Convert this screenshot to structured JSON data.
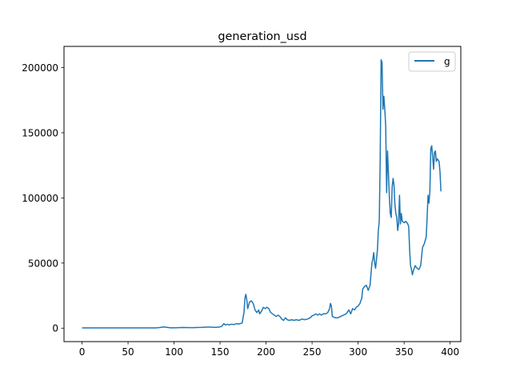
{
  "chart_data": {
    "type": "line",
    "title": "generation_usd",
    "xlabel": "",
    "ylabel": "",
    "xlim": [
      -19.6,
      411.6
    ],
    "ylim": [
      -10300,
      216300
    ],
    "xticks": [
      0,
      50,
      100,
      150,
      200,
      250,
      300,
      350,
      400
    ],
    "yticks": [
      0,
      50000,
      100000,
      150000,
      200000
    ],
    "xtick_labels": [
      "0",
      "50",
      "100",
      "150",
      "200",
      "250",
      "300",
      "350",
      "400"
    ],
    "ytick_labels": [
      "0",
      "50000",
      "100000",
      "150000",
      "200000"
    ],
    "grid": false,
    "legend": {
      "position": "top-right"
    },
    "series": [
      {
        "name": "g",
        "color": "#1f77b4",
        "points": [
          [
            0,
            200
          ],
          [
            20,
            200
          ],
          [
            40,
            200
          ],
          [
            60,
            200
          ],
          [
            80,
            200
          ],
          [
            85,
            500
          ],
          [
            88,
            1000
          ],
          [
            92,
            700
          ],
          [
            96,
            300
          ],
          [
            100,
            300
          ],
          [
            110,
            500
          ],
          [
            120,
            400
          ],
          [
            125,
            500
          ],
          [
            130,
            600
          ],
          [
            135,
            800
          ],
          [
            140,
            800
          ],
          [
            145,
            600
          ],
          [
            150,
            1000
          ],
          [
            152,
            1500
          ],
          [
            154,
            3500
          ],
          [
            156,
            2500
          ],
          [
            158,
            3000
          ],
          [
            160,
            2500
          ],
          [
            162,
            3000
          ],
          [
            165,
            2800
          ],
          [
            168,
            3500
          ],
          [
            170,
            3200
          ],
          [
            172,
            3500
          ],
          [
            174,
            4000
          ],
          [
            176,
            12000
          ],
          [
            177,
            23000
          ],
          [
            178,
            26000
          ],
          [
            179,
            22000
          ],
          [
            180,
            15000
          ],
          [
            182,
            20000
          ],
          [
            184,
            21000
          ],
          [
            186,
            19000
          ],
          [
            188,
            14000
          ],
          [
            190,
            12000
          ],
          [
            192,
            14000
          ],
          [
            193,
            11000
          ],
          [
            195,
            13000
          ],
          [
            197,
            16000
          ],
          [
            199,
            15000
          ],
          [
            201,
            16000
          ],
          [
            203,
            15000
          ],
          [
            205,
            12000
          ],
          [
            207,
            11000
          ],
          [
            209,
            10000
          ],
          [
            211,
            9000
          ],
          [
            213,
            10000
          ],
          [
            215,
            9000
          ],
          [
            217,
            7000
          ],
          [
            219,
            6000
          ],
          [
            221,
            8000
          ],
          [
            223,
            6500
          ],
          [
            225,
            6000
          ],
          [
            228,
            6500
          ],
          [
            230,
            6000
          ],
          [
            233,
            6500
          ],
          [
            236,
            6000
          ],
          [
            239,
            7000
          ],
          [
            242,
            6500
          ],
          [
            245,
            7000
          ],
          [
            248,
            8000
          ],
          [
            250,
            9500
          ],
          [
            252,
            10000
          ],
          [
            254,
            11000
          ],
          [
            256,
            10000
          ],
          [
            258,
            11000
          ],
          [
            260,
            10000
          ],
          [
            262,
            11000
          ],
          [
            265,
            11000
          ],
          [
            267,
            12000
          ],
          [
            269,
            15000
          ],
          [
            270,
            19000
          ],
          [
            271,
            17000
          ],
          [
            272,
            9000
          ],
          [
            275,
            8000
          ],
          [
            278,
            8000
          ],
          [
            281,
            9000
          ],
          [
            284,
            10000
          ],
          [
            287,
            11000
          ],
          [
            288,
            12000
          ],
          [
            290,
            14000
          ],
          [
            292,
            11000
          ],
          [
            294,
            15000
          ],
          [
            296,
            14000
          ],
          [
            298,
            16000
          ],
          [
            300,
            17000
          ],
          [
            302,
            19000
          ],
          [
            304,
            23000
          ],
          [
            305,
            30000
          ],
          [
            307,
            32000
          ],
          [
            309,
            33000
          ],
          [
            311,
            29000
          ],
          [
            313,
            33000
          ],
          [
            315,
            50000
          ],
          [
            316,
            53000
          ],
          [
            317,
            58000
          ],
          [
            318,
            50000
          ],
          [
            319,
            46000
          ],
          [
            320,
            53000
          ],
          [
            321,
            60000
          ],
          [
            322,
            75000
          ],
          [
            323,
            82000
          ],
          [
            324,
            130000
          ],
          [
            325,
            206000
          ],
          [
            326,
            204000
          ],
          [
            327,
            168000
          ],
          [
            328,
            178000
          ],
          [
            329,
            168000
          ],
          [
            330,
            155000
          ],
          [
            331,
            104000
          ],
          [
            332,
            136000
          ],
          [
            333,
            118000
          ],
          [
            334,
            100000
          ],
          [
            335,
            88000
          ],
          [
            336,
            85000
          ],
          [
            337,
            108000
          ],
          [
            338,
            115000
          ],
          [
            339,
            110000
          ],
          [
            340,
            95000
          ],
          [
            341,
            88000
          ],
          [
            342,
            85000
          ],
          [
            343,
            75000
          ],
          [
            344,
            80000
          ],
          [
            345,
            102000
          ],
          [
            346,
            80000
          ],
          [
            347,
            88000
          ],
          [
            348,
            82000
          ],
          [
            350,
            81000
          ],
          [
            352,
            82000
          ],
          [
            354,
            80000
          ],
          [
            355,
            78000
          ],
          [
            356,
            60000
          ],
          [
            357,
            48000
          ],
          [
            358,
            45000
          ],
          [
            359,
            41000
          ],
          [
            360,
            44000
          ],
          [
            362,
            48000
          ],
          [
            364,
            46000
          ],
          [
            366,
            45000
          ],
          [
            368,
            48000
          ],
          [
            370,
            62000
          ],
          [
            372,
            65000
          ],
          [
            374,
            70000
          ],
          [
            375,
            85000
          ],
          [
            376,
            102000
          ],
          [
            377,
            96000
          ],
          [
            378,
            105000
          ],
          [
            379,
            138000
          ],
          [
            380,
            140000
          ],
          [
            381,
            132000
          ],
          [
            382,
            122000
          ],
          [
            383,
            135000
          ],
          [
            384,
            136000
          ],
          [
            385,
            128000
          ],
          [
            386,
            130000
          ],
          [
            388,
            128000
          ],
          [
            389,
            120000
          ],
          [
            390,
            105000
          ]
        ]
      }
    ]
  }
}
